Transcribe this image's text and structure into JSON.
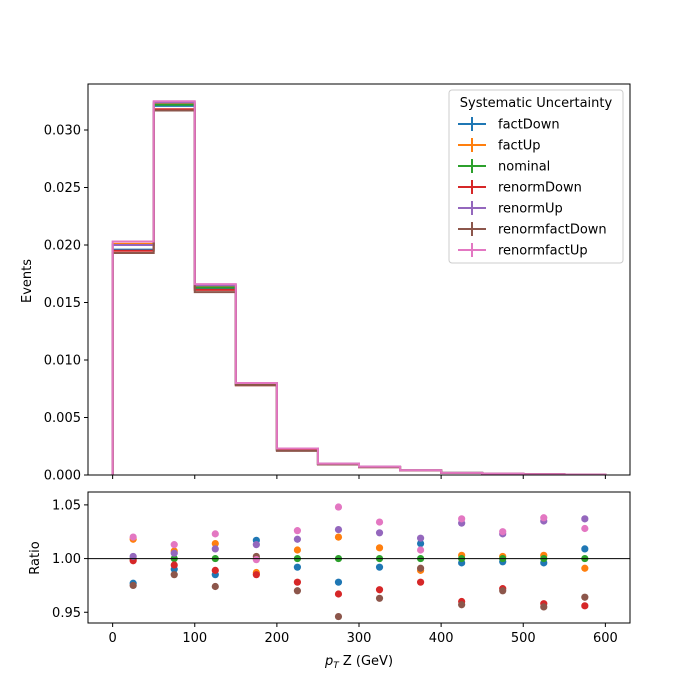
{
  "chart_data": [
    {
      "type": "step-histogram",
      "ylabel": "Events",
      "xlim": [
        -30,
        630
      ],
      "ylim": [
        0,
        0.034
      ],
      "yticks": [
        "0.000",
        "0.005",
        "0.010",
        "0.015",
        "0.020",
        "0.025",
        "0.030"
      ],
      "ytick_values": [
        0,
        0.005,
        0.01,
        0.015,
        0.02,
        0.025,
        0.03
      ],
      "xticks_values": [
        0,
        100,
        200,
        300,
        400,
        500,
        600
      ],
      "bin_edges": [
        0,
        50,
        100,
        150,
        200,
        250,
        300,
        350,
        400,
        450,
        500,
        550,
        600
      ],
      "legend": {
        "title": "Systematic Uncertainty",
        "placement": "top-right"
      },
      "series": [
        {
          "name": "factDown",
          "color": "#1f77b4",
          "values": [
            0.0196,
            0.0321,
            0.0162,
            0.0079,
            0.0022,
            0.00095,
            0.0007,
            0.0004,
            0.00018,
            0.00012,
            6e-05,
            3e-05
          ]
        },
        {
          "name": "factUp",
          "color": "#ff7f0e",
          "values": [
            0.0201,
            0.0323,
            0.0164,
            0.008,
            0.0023,
            0.00098,
            0.00072,
            0.00041,
            0.00019,
            0.00012,
            6e-05,
            3e-05
          ]
        },
        {
          "name": "nominal",
          "color": "#2ca02c",
          "values": [
            0.02,
            0.0322,
            0.0163,
            0.0079,
            0.0022,
            0.00096,
            0.00071,
            0.0004,
            0.00018,
            0.00012,
            6e-05,
            3e-05
          ]
        },
        {
          "name": "renormDown",
          "color": "#d62728",
          "values": [
            0.0195,
            0.0318,
            0.0161,
            0.0078,
            0.0022,
            0.00093,
            0.00069,
            0.00039,
            0.00017,
            0.00011,
            6e-05,
            3e-05
          ]
        },
        {
          "name": "renormUp",
          "color": "#9467bd",
          "values": [
            0.02,
            0.0324,
            0.0165,
            0.008,
            0.0023,
            0.00099,
            0.00073,
            0.00041,
            0.00019,
            0.00012,
            6e-05,
            3e-05
          ]
        },
        {
          "name": "renormfactDown",
          "color": "#8c564b",
          "values": [
            0.0193,
            0.0317,
            0.0159,
            0.0078,
            0.0021,
            0.00091,
            0.00067,
            0.00039,
            0.00017,
            0.00011,
            6e-05,
            3e-05
          ]
        },
        {
          "name": "renormfactUp",
          "color": "#e377c2",
          "values": [
            0.0203,
            0.0325,
            0.0166,
            0.008,
            0.0023,
            0.00099,
            0.00073,
            0.00041,
            0.00019,
            0.00012,
            6e-05,
            3e-05
          ]
        }
      ]
    },
    {
      "type": "scatter",
      "ylabel": "Ratio",
      "xlabel": "$p_T$ Z (GeV)",
      "xlabel_main": "p",
      "xlabel_sub": "T",
      "xlabel_rest": " Z (GeV)",
      "xlim": [
        -30,
        630
      ],
      "ylim": [
        0.94,
        1.062
      ],
      "yticks": [
        "0.95",
        "1.00",
        "1.05"
      ],
      "ytick_values": [
        0.95,
        1.0,
        1.05
      ],
      "xticks": [
        "0",
        "100",
        "200",
        "300",
        "400",
        "500",
        "600"
      ],
      "xticks_values": [
        0,
        100,
        200,
        300,
        400,
        500,
        600
      ],
      "reference_line": 1.0,
      "x": [
        25,
        75,
        125,
        175,
        225,
        275,
        325,
        375,
        425,
        475,
        525,
        575
      ],
      "series": [
        {
          "name": "factDown",
          "color": "#1f77b4",
          "values": [
            0.977,
            0.99,
            0.985,
            1.017,
            0.992,
            0.978,
            0.992,
            1.014,
            0.996,
            0.997,
            0.996,
            1.009
          ]
        },
        {
          "name": "factUp",
          "color": "#ff7f0e",
          "values": [
            1.018,
            1.007,
            1.014,
            0.987,
            1.008,
            1.02,
            1.01,
            0.989,
            1.003,
            1.002,
            1.003,
            0.991
          ]
        },
        {
          "name": "nominal",
          "color": "#2ca02c",
          "values": [
            1.0,
            1.0,
            1.0,
            1.0,
            1.0,
            1.0,
            1.0,
            1.0,
            1.0,
            1.0,
            1.0,
            1.0
          ]
        },
        {
          "name": "renormDown",
          "color": "#d62728",
          "values": [
            0.998,
            0.994,
            0.989,
            0.985,
            0.978,
            0.967,
            0.971,
            0.978,
            0.96,
            0.972,
            0.958,
            0.956
          ]
        },
        {
          "name": "renormUp",
          "color": "#9467bd",
          "values": [
            1.002,
            1.005,
            1.009,
            1.013,
            1.018,
            1.027,
            1.024,
            1.019,
            1.033,
            1.023,
            1.035,
            1.037
          ]
        },
        {
          "name": "renormfactDown",
          "color": "#8c564b",
          "values": [
            0.975,
            0.985,
            0.974,
            1.002,
            0.97,
            0.946,
            0.963,
            0.991,
            0.957,
            0.97,
            0.955,
            0.964
          ]
        },
        {
          "name": "renormfactUp",
          "color": "#e377c2",
          "values": [
            1.02,
            1.013,
            1.023,
            0.999,
            1.026,
            1.048,
            1.034,
            1.008,
            1.037,
            1.025,
            1.038,
            1.028
          ]
        }
      ]
    }
  ]
}
